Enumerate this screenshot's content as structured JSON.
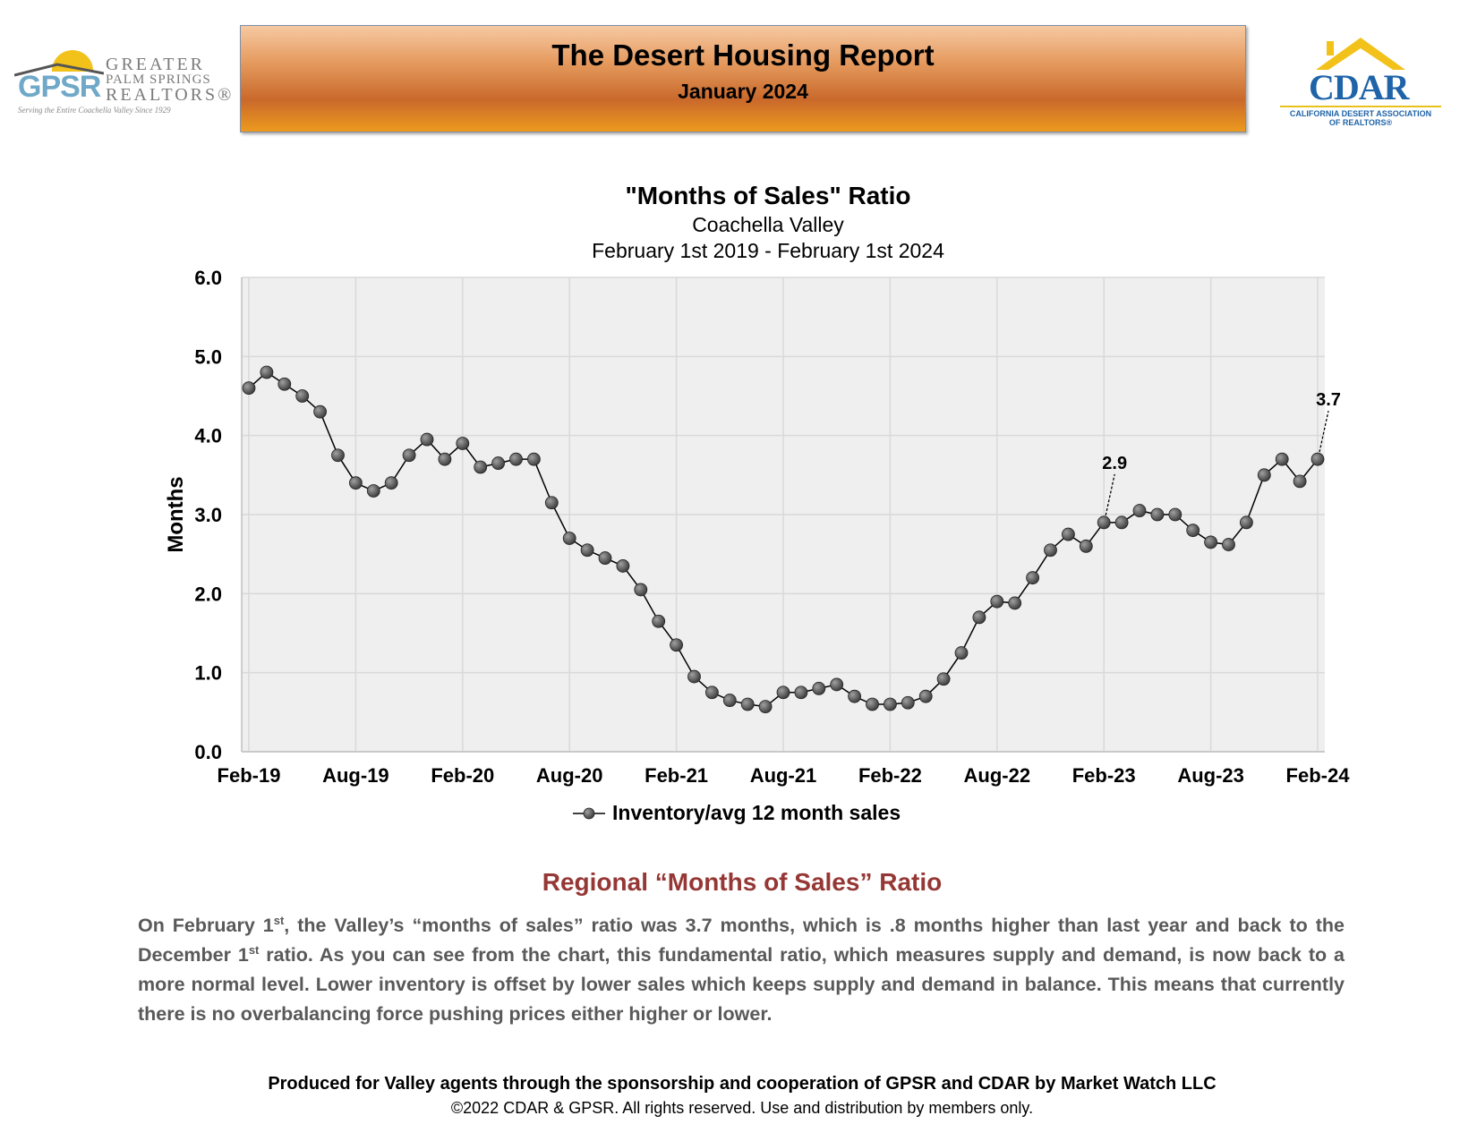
{
  "logos": {
    "gpsr": {
      "mark": "GPSR",
      "line1": "GREATER",
      "line2": "PALM SPRINGS",
      "line3": "REALTORS®",
      "tagline": "Serving the Entire Coachella Valley Since 1929"
    },
    "cdar": {
      "mark": "CDAR",
      "line1": "CALIFORNIA DESERT ASSOCIATION",
      "line2": "OF REALTORS®"
    }
  },
  "banner": {
    "title": "The Desert Housing Report",
    "subtitle": "January 2024"
  },
  "chart_heading": {
    "title": "\"Months of Sales\" Ratio",
    "subtitle1": "Coachella Valley",
    "subtitle2": "February 1st 2019 - February 1st 2024"
  },
  "colors": {
    "banner_top": "#f6c9a2",
    "banner_mid": "#c9692b",
    "banner_bottom": "#ec9a1e",
    "heading_red": "#953735",
    "body_gray": "#595959",
    "plot_bg": "#efefef",
    "grid": "#d9d9d9",
    "marker": "#404040"
  },
  "chart_data": {
    "type": "line",
    "ylabel": "Months",
    "xlabel": "",
    "ylim": [
      0,
      6
    ],
    "yticks": [
      "0.0",
      "1.0",
      "2.0",
      "3.0",
      "4.0",
      "5.0",
      "6.0"
    ],
    "xtick_labels": [
      "Feb-19",
      "Aug-19",
      "Feb-20",
      "Aug-20",
      "Feb-21",
      "Aug-21",
      "Feb-22",
      "Aug-22",
      "Feb-23",
      "Aug-23",
      "Feb-24"
    ],
    "grid": true,
    "legend_position": "bottom-center",
    "series": [
      {
        "name": "Inventory/avg 12 month sales",
        "values": [
          4.6,
          4.8,
          4.65,
          4.5,
          4.3,
          3.75,
          3.4,
          3.3,
          3.4,
          3.75,
          3.95,
          3.7,
          3.9,
          3.6,
          3.65,
          3.7,
          3.7,
          3.15,
          2.7,
          2.55,
          2.45,
          2.35,
          2.05,
          1.65,
          1.35,
          0.95,
          0.75,
          0.65,
          0.6,
          0.57,
          0.75,
          0.75,
          0.8,
          0.85,
          0.7,
          0.6,
          0.6,
          0.62,
          0.7,
          0.92,
          1.25,
          1.7,
          1.9,
          1.88,
          2.2,
          2.55,
          2.75,
          2.6,
          2.9,
          2.9,
          3.05,
          3.0,
          3.0,
          2.8,
          2.65,
          2.62,
          2.9,
          3.5,
          3.7,
          3.42,
          3.7
        ]
      }
    ],
    "annotations": [
      {
        "label": "2.9",
        "point_index": 48
      },
      {
        "label": "3.7",
        "point_index": 60
      }
    ]
  },
  "section": {
    "heading": "Regional “Months of Sales” Ratio"
  },
  "paragraph": {
    "p1": "On February 1",
    "sup1": "st",
    "p2": ", the Valley’s “months of sales” ratio was 3.7 months, which is .8 months higher than last year and back to the December 1",
    "sup2": "st",
    "p3": " ratio. As you can see from the chart, this fundamental ratio, which measures supply and demand, is now back to a more normal level. Lower inventory is offset by lower sales which keeps supply and demand in balance. This means that currently there is no overbalancing force pushing prices either higher or lower."
  },
  "footer": {
    "line1": "Produced for Valley agents through the sponsorship and cooperation of GPSR and CDAR by Market Watch LLC",
    "line2": "©2022 CDAR & GPSR.  All rights reserved.  Use and distribution by members only."
  }
}
